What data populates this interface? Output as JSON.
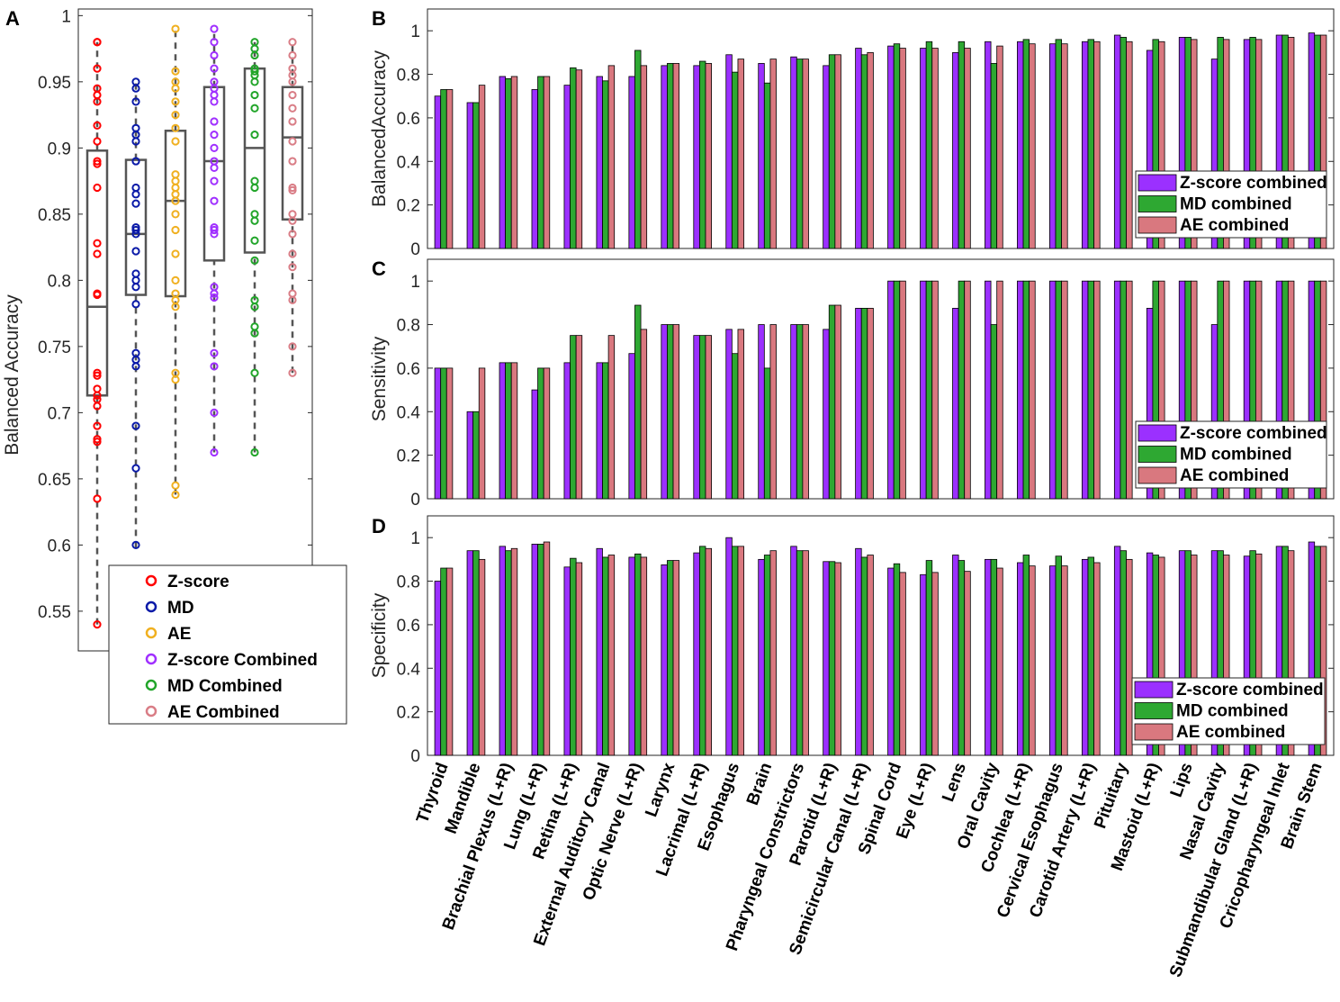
{
  "panel_letters": {
    "a": "A",
    "b": "B",
    "c": "C",
    "d": "D"
  },
  "colors": {
    "zscore": "#ff0000",
    "md": "#0a1aa8",
    "ae": "#f0b020",
    "zscore_combined": "#a030ff",
    "md_combined": "#22a52a",
    "ae_combined": "#d97d86",
    "bar_z": "#9b30ff",
    "bar_md": "#2ea832",
    "bar_ae": "#d9787f",
    "box": "#555555"
  },
  "chart_data": [
    {
      "id": "A",
      "type": "box-scatter",
      "ylabel": "Balanced Accuracy",
      "ylim": [
        0.52,
        1.005
      ],
      "yticks": [
        0.55,
        0.6,
        0.65,
        0.7,
        0.75,
        0.8,
        0.85,
        0.9,
        0.95,
        1
      ],
      "ytick_labels": [
        "0.55",
        "0.6",
        "0.65",
        "0.7",
        "0.75",
        "0.8",
        "0.85",
        "0.9",
        "0.95",
        "1"
      ],
      "legend": [
        "Z-score",
        "MD",
        "AE",
        "Z-score Combined",
        "MD Combined",
        "AE Combined"
      ],
      "groups": [
        {
          "name": "Z-score",
          "box": {
            "whisker_low": 0.54,
            "q1": 0.713,
            "median": 0.78,
            "q3": 0.898,
            "whisker_high": 0.98
          },
          "points": [
            0.98,
            0.98,
            0.96,
            0.945,
            0.94,
            0.935,
            0.917,
            0.905,
            0.89,
            0.888,
            0.87,
            0.828,
            0.82,
            0.79,
            0.789,
            0.73,
            0.728,
            0.718,
            0.713,
            0.71,
            0.705,
            0.69,
            0.68,
            0.678,
            0.635,
            0.54
          ]
        },
        {
          "name": "MD",
          "box": {
            "whisker_low": 0.598,
            "q1": 0.789,
            "median": 0.835,
            "q3": 0.891,
            "whisker_high": 0.95
          },
          "points": [
            0.95,
            0.945,
            0.935,
            0.915,
            0.91,
            0.905,
            0.89,
            0.87,
            0.865,
            0.858,
            0.84,
            0.838,
            0.835,
            0.822,
            0.805,
            0.8,
            0.795,
            0.782,
            0.745,
            0.74,
            0.735,
            0.69,
            0.658,
            0.6
          ]
        },
        {
          "name": "AE",
          "box": {
            "whisker_low": 0.638,
            "q1": 0.788,
            "median": 0.86,
            "q3": 0.913,
            "whisker_high": 0.99
          },
          "points": [
            0.99,
            0.958,
            0.95,
            0.945,
            0.935,
            0.925,
            0.915,
            0.905,
            0.88,
            0.875,
            0.87,
            0.865,
            0.86,
            0.85,
            0.838,
            0.82,
            0.8,
            0.79,
            0.785,
            0.78,
            0.73,
            0.725,
            0.645,
            0.638
          ]
        },
        {
          "name": "Z-score Combined",
          "box": {
            "whisker_low": 0.67,
            "q1": 0.815,
            "median": 0.89,
            "q3": 0.946,
            "whisker_high": 0.99
          },
          "points": [
            0.99,
            0.98,
            0.97,
            0.96,
            0.95,
            0.945,
            0.94,
            0.935,
            0.92,
            0.91,
            0.9,
            0.89,
            0.885,
            0.875,
            0.86,
            0.84,
            0.838,
            0.835,
            0.795,
            0.79,
            0.787,
            0.745,
            0.735,
            0.7,
            0.67
          ]
        },
        {
          "name": "MD Combined",
          "box": {
            "whisker_low": 0.67,
            "q1": 0.821,
            "median": 0.9,
            "q3": 0.96,
            "whisker_high": 0.98
          },
          "points": [
            0.98,
            0.975,
            0.97,
            0.96,
            0.958,
            0.955,
            0.95,
            0.94,
            0.93,
            0.91,
            0.875,
            0.87,
            0.85,
            0.845,
            0.83,
            0.815,
            0.785,
            0.78,
            0.765,
            0.76,
            0.73,
            0.67
          ]
        },
        {
          "name": "AE Combined",
          "box": {
            "whisker_low": 0.73,
            "q1": 0.846,
            "median": 0.908,
            "q3": 0.946,
            "whisker_high": 0.98
          },
          "points": [
            0.98,
            0.97,
            0.96,
            0.955,
            0.95,
            0.94,
            0.93,
            0.92,
            0.905,
            0.89,
            0.87,
            0.868,
            0.85,
            0.845,
            0.835,
            0.82,
            0.81,
            0.79,
            0.785,
            0.75,
            0.73
          ]
        }
      ]
    },
    {
      "id": "B",
      "type": "grouped-bar",
      "ylabel": "BalancedAccuracy",
      "ylim": [
        0,
        1.1
      ],
      "yticks": [
        0,
        0.2,
        0.4,
        0.6,
        0.8,
        1
      ],
      "ytick_labels": [
        "0",
        "0.2",
        "0.4",
        "0.6",
        "0.8",
        "1"
      ],
      "legend": [
        "Z-score combined",
        "MD combined",
        "AE combined"
      ],
      "series": [
        {
          "name": "Z-score combined",
          "values": [
            0.7,
            0.67,
            0.79,
            0.73,
            0.75,
            0.79,
            0.79,
            0.84,
            0.84,
            0.89,
            0.85,
            0.88,
            0.84,
            0.92,
            0.93,
            0.92,
            0.9,
            0.95,
            0.95,
            0.94,
            0.95,
            0.98,
            0.91,
            0.97,
            0.87,
            0.96,
            0.98,
            0.99
          ]
        },
        {
          "name": "MD combined",
          "values": [
            0.73,
            0.67,
            0.78,
            0.79,
            0.83,
            0.77,
            0.91,
            0.85,
            0.86,
            0.81,
            0.76,
            0.87,
            0.89,
            0.89,
            0.94,
            0.95,
            0.95,
            0.85,
            0.96,
            0.96,
            0.96,
            0.97,
            0.96,
            0.97,
            0.97,
            0.97,
            0.98,
            0.98
          ]
        },
        {
          "name": "AE combined",
          "values": [
            0.73,
            0.75,
            0.79,
            0.79,
            0.82,
            0.84,
            0.84,
            0.85,
            0.85,
            0.87,
            0.87,
            0.87,
            0.89,
            0.9,
            0.92,
            0.92,
            0.92,
            0.93,
            0.94,
            0.94,
            0.95,
            0.95,
            0.95,
            0.96,
            0.96,
            0.96,
            0.97,
            0.98
          ]
        }
      ]
    },
    {
      "id": "C",
      "type": "grouped-bar",
      "ylabel": "Sensitivity",
      "ylim": [
        0,
        1.1
      ],
      "yticks": [
        0,
        0.2,
        0.4,
        0.6,
        0.8,
        1
      ],
      "ytick_labels": [
        "0",
        "0.2",
        "0.4",
        "0.6",
        "0.8",
        "1"
      ],
      "legend": [
        "Z-score combined",
        "MD combined",
        "AE combined"
      ],
      "series": [
        {
          "name": "Z-score combined",
          "values": [
            0.6,
            0.4,
            0.625,
            0.5,
            0.625,
            0.625,
            0.667,
            0.8,
            0.75,
            0.778,
            0.8,
            0.8,
            0.778,
            0.875,
            1,
            1,
            0.875,
            1,
            1,
            1,
            1,
            1,
            0.875,
            1,
            0.8,
            1,
            1,
            1
          ]
        },
        {
          "name": "MD combined",
          "values": [
            0.6,
            0.4,
            0.625,
            0.6,
            0.75,
            0.625,
            0.889,
            0.8,
            0.75,
            0.667,
            0.6,
            0.8,
            0.889,
            0.875,
            1,
            1,
            1,
            0.8,
            1,
            1,
            1,
            1,
            1,
            1,
            1,
            1,
            1,
            1
          ]
        },
        {
          "name": "AE combined",
          "values": [
            0.6,
            0.6,
            0.625,
            0.6,
            0.75,
            0.75,
            0.778,
            0.8,
            0.75,
            0.778,
            0.8,
            0.8,
            0.889,
            0.875,
            1,
            1,
            1,
            1,
            1,
            1,
            1,
            1,
            1,
            1,
            1,
            1,
            1,
            1
          ]
        }
      ]
    },
    {
      "id": "D",
      "type": "grouped-bar",
      "ylabel": "Specificity",
      "ylim": [
        0,
        1.1
      ],
      "yticks": [
        0,
        0.2,
        0.4,
        0.6,
        0.8,
        1
      ],
      "ytick_labels": [
        "0",
        "0.2",
        "0.4",
        "0.6",
        "0.8",
        "1"
      ],
      "legend": [
        "Z-score combined",
        "MD combined",
        "AE combined"
      ],
      "series": [
        {
          "name": "Z-score combined",
          "values": [
            0.8,
            0.94,
            0.96,
            0.97,
            0.865,
            0.95,
            0.91,
            0.875,
            0.93,
            1,
            0.9,
            0.96,
            0.89,
            0.95,
            0.86,
            0.83,
            0.92,
            0.9,
            0.885,
            0.87,
            0.9,
            0.96,
            0.93,
            0.94,
            0.94,
            0.915,
            0.96,
            0.98
          ]
        },
        {
          "name": "MD combined",
          "values": [
            0.86,
            0.94,
            0.94,
            0.97,
            0.905,
            0.91,
            0.925,
            0.895,
            0.96,
            0.96,
            0.92,
            0.94,
            0.89,
            0.91,
            0.88,
            0.895,
            0.895,
            0.9,
            0.92,
            0.915,
            0.91,
            0.94,
            0.92,
            0.94,
            0.94,
            0.94,
            0.96,
            0.96
          ]
        },
        {
          "name": "AE combined",
          "values": [
            0.86,
            0.9,
            0.95,
            0.98,
            0.885,
            0.92,
            0.91,
            0.895,
            0.95,
            0.96,
            0.94,
            0.94,
            0.885,
            0.92,
            0.84,
            0.84,
            0.845,
            0.86,
            0.87,
            0.87,
            0.885,
            0.9,
            0.91,
            0.92,
            0.92,
            0.925,
            0.94,
            0.96
          ]
        }
      ]
    }
  ],
  "categories": [
    "Thyroid",
    "Mandible",
    "Brachial Plexus (L+R)",
    "Lung (L+R)",
    "Retina (L+R)",
    "External Auditory Canal",
    "Optic Nerve (L+R)",
    "Larynx",
    "Lacrimal (L+R)",
    "Esophagus",
    "Brain",
    "Pharyngeal Constrictors",
    "Parotid (L+R)",
    "Semicircular Canal (L+R)",
    "Spinal Cord",
    "Eye (L+R)",
    "Lens",
    "Oral Cavity",
    "Cochlea (L+R)",
    "Cervical Esophagus",
    "Carotid Artery (L+R)",
    "Pituitary",
    "Mastoid (L+R)",
    "Lips",
    "Nasal Cavity",
    "Submandibular Gland (L+R)",
    "Cricopharyngeal Inlet",
    "Brain Stem"
  ]
}
